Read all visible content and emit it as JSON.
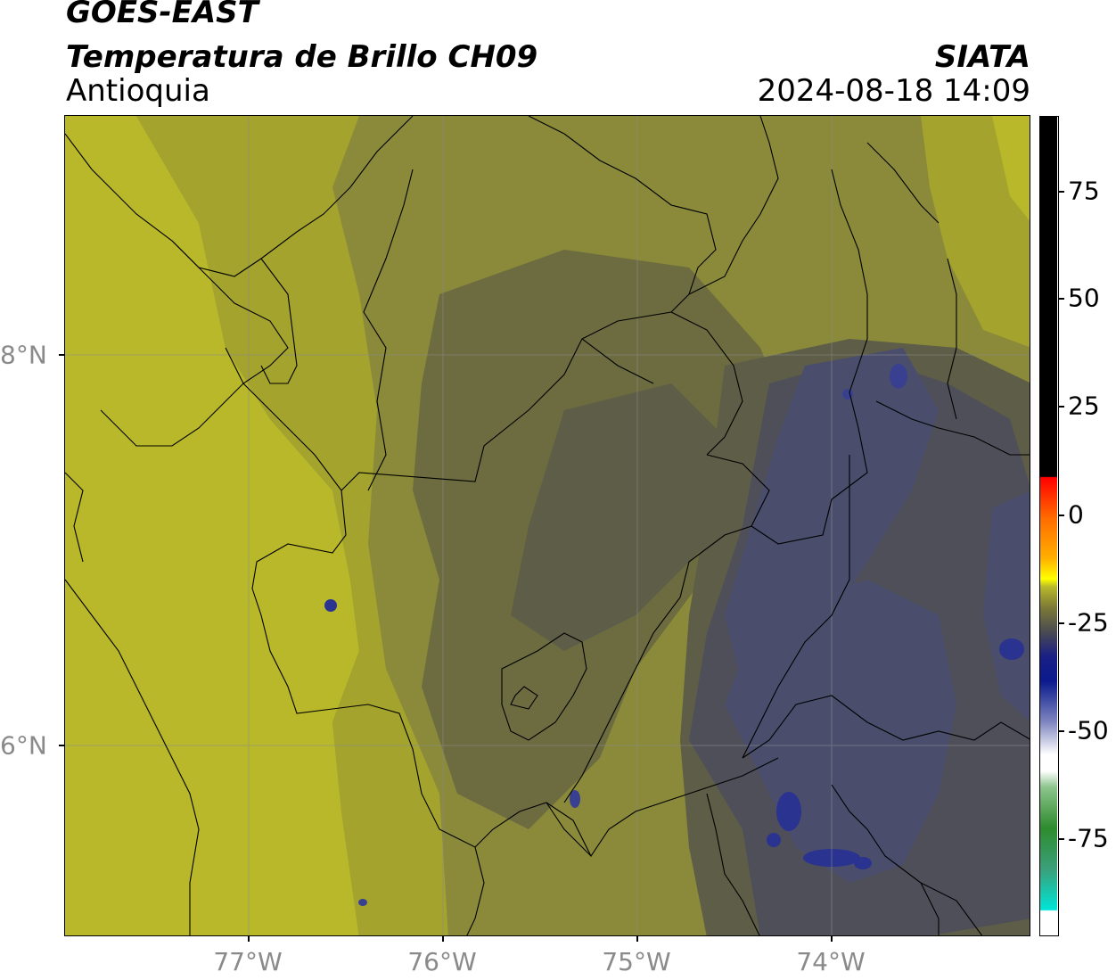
{
  "header": {
    "title": "GOES-EAST",
    "subtitle": "Temperatura de Brillo CH09",
    "region": "Antioquia",
    "organization": "SIATA",
    "datetime": "2024-08-18 14:09"
  },
  "map": {
    "lon_labels": [
      "77°W",
      "76°W",
      "75°W",
      "74°W"
    ],
    "lat_labels": [
      "8°N",
      "6°N"
    ],
    "gridlines": true
  },
  "colorbar": {
    "labels": [
      "75",
      "50",
      "25",
      "0",
      "-25",
      "-50",
      "-75"
    ],
    "colors": {
      "black": "#000000",
      "red": "#ff0000",
      "orange": "#ff8c00",
      "yellow": "#ffff00",
      "olive": "#7c7a36",
      "gray": "#4a4a52",
      "navy": "#0a1a8c",
      "white": "#ffffff",
      "green": "#2e8b2e",
      "cyan": "#00e5d8"
    }
  },
  "field": {
    "colors": {
      "bright_yellow": "#b8b82a",
      "yellow_olive": "#a3a32e",
      "olive": "#8a8a3a",
      "dark_olive": "#6c6c40",
      "gray_olive": "#5d5d48",
      "slate": "#4f4f5a",
      "slate_blue": "#4a4e6c",
      "cloud_blue": "#2a3390"
    }
  }
}
